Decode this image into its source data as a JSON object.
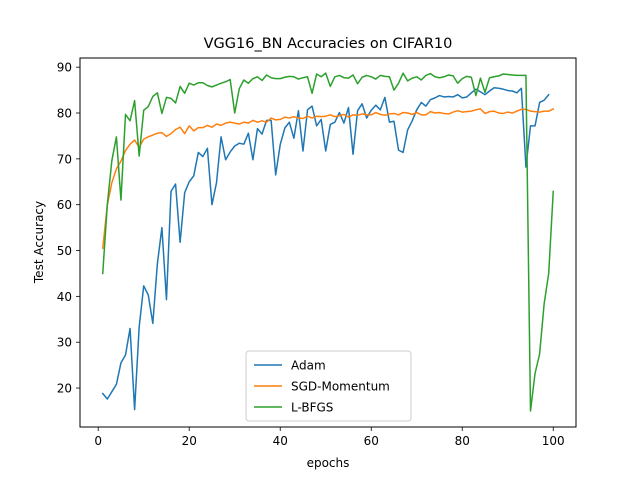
{
  "chart_data": {
    "type": "line",
    "title": "VGG16_BN Accuracies on CIFAR10",
    "xlabel": "epochs",
    "ylabel": "Test Accuracy",
    "xlim": [
      -4,
      105
    ],
    "ylim": [
      11.5,
      92
    ],
    "xticks": [
      0,
      20,
      40,
      60,
      80,
      100
    ],
    "yticks": [
      20,
      30,
      40,
      50,
      60,
      70,
      80,
      90
    ],
    "grid": false,
    "legend_position": "lower-center",
    "series": [
      {
        "name": "Adam",
        "color": "#1f77b4",
        "values": [
          18.8,
          17.6,
          19.2,
          20.8,
          25.5,
          27.2,
          33.0,
          15.3,
          33.3,
          42.3,
          40.3,
          34.1,
          47.1,
          55.0,
          39.3,
          62.9,
          64.5,
          51.8,
          62.6,
          65.0,
          66.3,
          71.4,
          70.5,
          72.3,
          60.0,
          64.8,
          74.8,
          69.8,
          71.5,
          72.8,
          73.4,
          73.2,
          75.6,
          69.8,
          76.6,
          75.4,
          78.4,
          78.4,
          66.5,
          73.1,
          76.7,
          78.0,
          74.5,
          80.5,
          71.7,
          80.7,
          81.5,
          77.2,
          78.6,
          71.7,
          77.5,
          78.0,
          80.1,
          77.8,
          81.2,
          71.0,
          80.5,
          82.0,
          78.9,
          80.6,
          81.7,
          80.7,
          83.4,
          78.0,
          78.2,
          71.9,
          71.4,
          76.3,
          78.3,
          80.7,
          82.3,
          81.5,
          82.9,
          83.3,
          83.8,
          83.5,
          83.6,
          83.5,
          84.0,
          83.3,
          83.5,
          84.4,
          85.2,
          84.6,
          84.0,
          84.8,
          85.5,
          85.4,
          85.2,
          84.9,
          84.8,
          84.4,
          85.4,
          68.2,
          77.2,
          77.2,
          82.3,
          82.8,
          84.0
        ]
      },
      {
        "name": "SGD-Momentum",
        "color": "#ff7f0e",
        "values": [
          50.5,
          59.9,
          64.8,
          67.8,
          69.5,
          71.8,
          73.2,
          74.1,
          72.5,
          74.3,
          74.8,
          75.2,
          75.6,
          75.7,
          74.9,
          75.5,
          76.4,
          76.9,
          75.5,
          77.2,
          76.1,
          76.8,
          76.8,
          77.3,
          76.9,
          77.6,
          77.3,
          77.8,
          78.0,
          77.8,
          77.6,
          78.0,
          77.8,
          78.4,
          78.0,
          78.3,
          78.0,
          78.9,
          78.5,
          78.6,
          79.1,
          78.9,
          79.2,
          78.9,
          78.8,
          79.3,
          78.9,
          79.3,
          79.2,
          79.3,
          79.6,
          79.2,
          79.4,
          79.7,
          79.1,
          79.6,
          79.5,
          79.8,
          79.6,
          79.6,
          80.1,
          79.7,
          79.5,
          79.8,
          79.9,
          79.6,
          80.1,
          80.0,
          79.7,
          80.1,
          79.6,
          79.6,
          80.3,
          80.0,
          80.1,
          79.9,
          79.8,
          80.2,
          80.5,
          80.2,
          80.3,
          80.4,
          80.7,
          80.9,
          79.9,
          80.3,
          80.4,
          80.0,
          79.9,
          80.2,
          80.0,
          80.4,
          80.8,
          80.8,
          80.4,
          80.3,
          80.2,
          80.4,
          80.4,
          80.9
        ]
      },
      {
        "name": "L-BFGS",
        "color": "#2ca02c",
        "values": [
          45.0,
          60.0,
          69.6,
          74.8,
          61.0,
          79.7,
          78.3,
          82.7,
          70.6,
          80.6,
          81.4,
          83.6,
          84.4,
          79.9,
          83.4,
          83.2,
          82.2,
          85.8,
          84.3,
          86.5,
          86.1,
          86.6,
          86.6,
          86.0,
          85.7,
          86.1,
          86.5,
          86.8,
          87.3,
          80.0,
          85.3,
          87.2,
          86.5,
          87.5,
          87.9,
          87.1,
          88.3,
          87.7,
          87.5,
          87.5,
          87.8,
          88.0,
          87.9,
          87.4,
          87.7,
          87.9,
          84.3,
          88.5,
          87.9,
          88.7,
          85.8,
          87.9,
          88.2,
          87.7,
          87.6,
          88.3,
          86.4,
          87.8,
          88.2,
          87.9,
          87.4,
          88.2,
          88.0,
          87.9,
          85.0,
          86.5,
          88.7,
          87.0,
          87.6,
          87.9,
          87.2,
          88.2,
          88.6,
          87.9,
          87.7,
          87.9,
          88.3,
          88.1,
          86.5,
          87.5,
          88.0,
          87.8,
          83.8,
          87.6,
          84.5,
          87.7,
          87.9,
          88.1,
          88.5,
          88.4,
          88.3,
          88.2,
          88.2,
          88.2,
          15.0,
          23.2,
          27.4,
          38.4,
          45.0,
          62.9
        ]
      }
    ]
  }
}
